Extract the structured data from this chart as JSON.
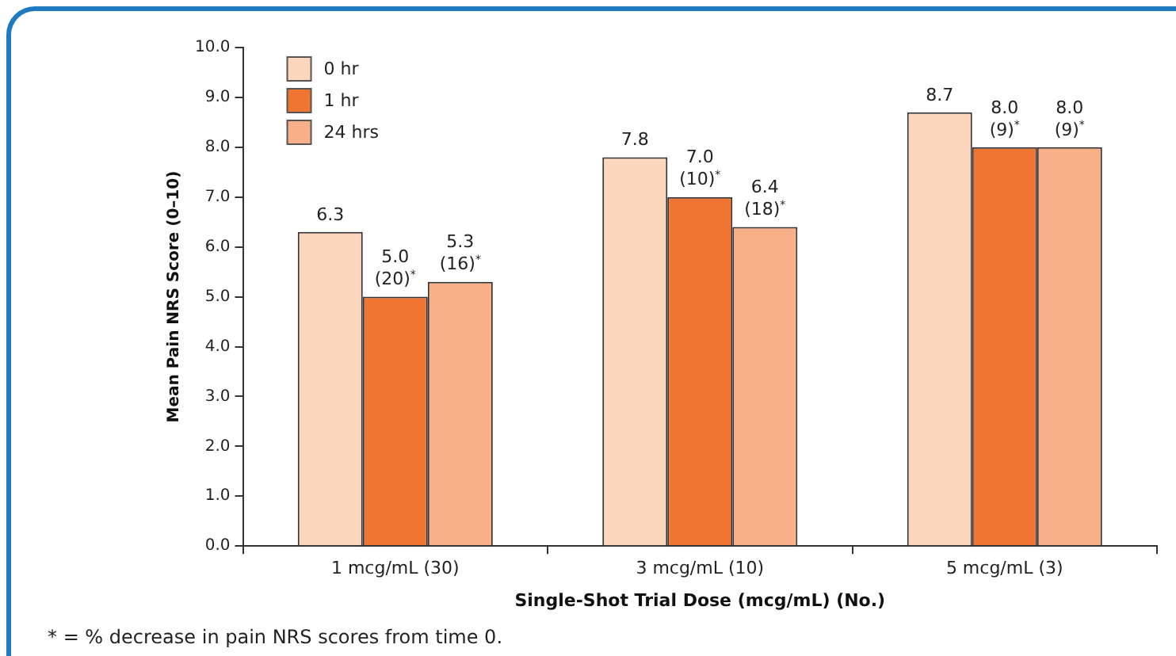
{
  "chart_data": {
    "type": "bar",
    "xlabel": "Single-Shot Trial Dose (mcg/mL) (No.)",
    "ylabel": "Mean Pain NRS Score (0–10)",
    "categories": [
      "1 mcg/mL (30)",
      "3 mcg/mL (10)",
      "5 mcg/mL (3)"
    ],
    "series": [
      {
        "name": "0 hr",
        "color": "#fcd6bd",
        "values": [
          6.3,
          7.8,
          8.7
        ],
        "value_labels": [
          "6.3",
          "7.8",
          "8.7"
        ]
      },
      {
        "name": "1 hr",
        "color": "#f07432",
        "values": [
          5.0,
          7.0,
          8.0
        ],
        "value_labels": [
          "5.0\n(20)$^{*}$",
          "7.0\n(10)$^{*}$",
          "8.0\n(9)$^{*}$"
        ]
      },
      {
        "name": "24 hrs",
        "color": "#f8b088",
        "values": [
          5.3,
          6.4,
          8.0
        ],
        "value_labels": [
          "5.3\n(16)$^{*}$",
          "6.4\n(18)$^{*}$",
          "8.0\n(9)$^{*}$"
        ]
      }
    ],
    "ylim": [
      0,
      10
    ],
    "yticks": [
      {
        "value": 0,
        "label": "0.0"
      },
      {
        "value": 1,
        "label": "1.0"
      },
      {
        "value": 2,
        "label": "2.0"
      },
      {
        "value": 3,
        "label": "3.0"
      },
      {
        "value": 4,
        "label": "4.0"
      },
      {
        "value": 5,
        "label": "5.0"
      },
      {
        "value": 6,
        "label": "6.0"
      },
      {
        "value": 7,
        "label": "7.0"
      },
      {
        "value": 8,
        "label": "8.0"
      },
      {
        "value": 9,
        "label": "9.0"
      },
      {
        "value": 10,
        "label": "10.0"
      }
    ],
    "grid": false,
    "legend": "top left",
    "annotations": [
      "* = % decrease in pain NRS scores from time 0."
    ]
  }
}
